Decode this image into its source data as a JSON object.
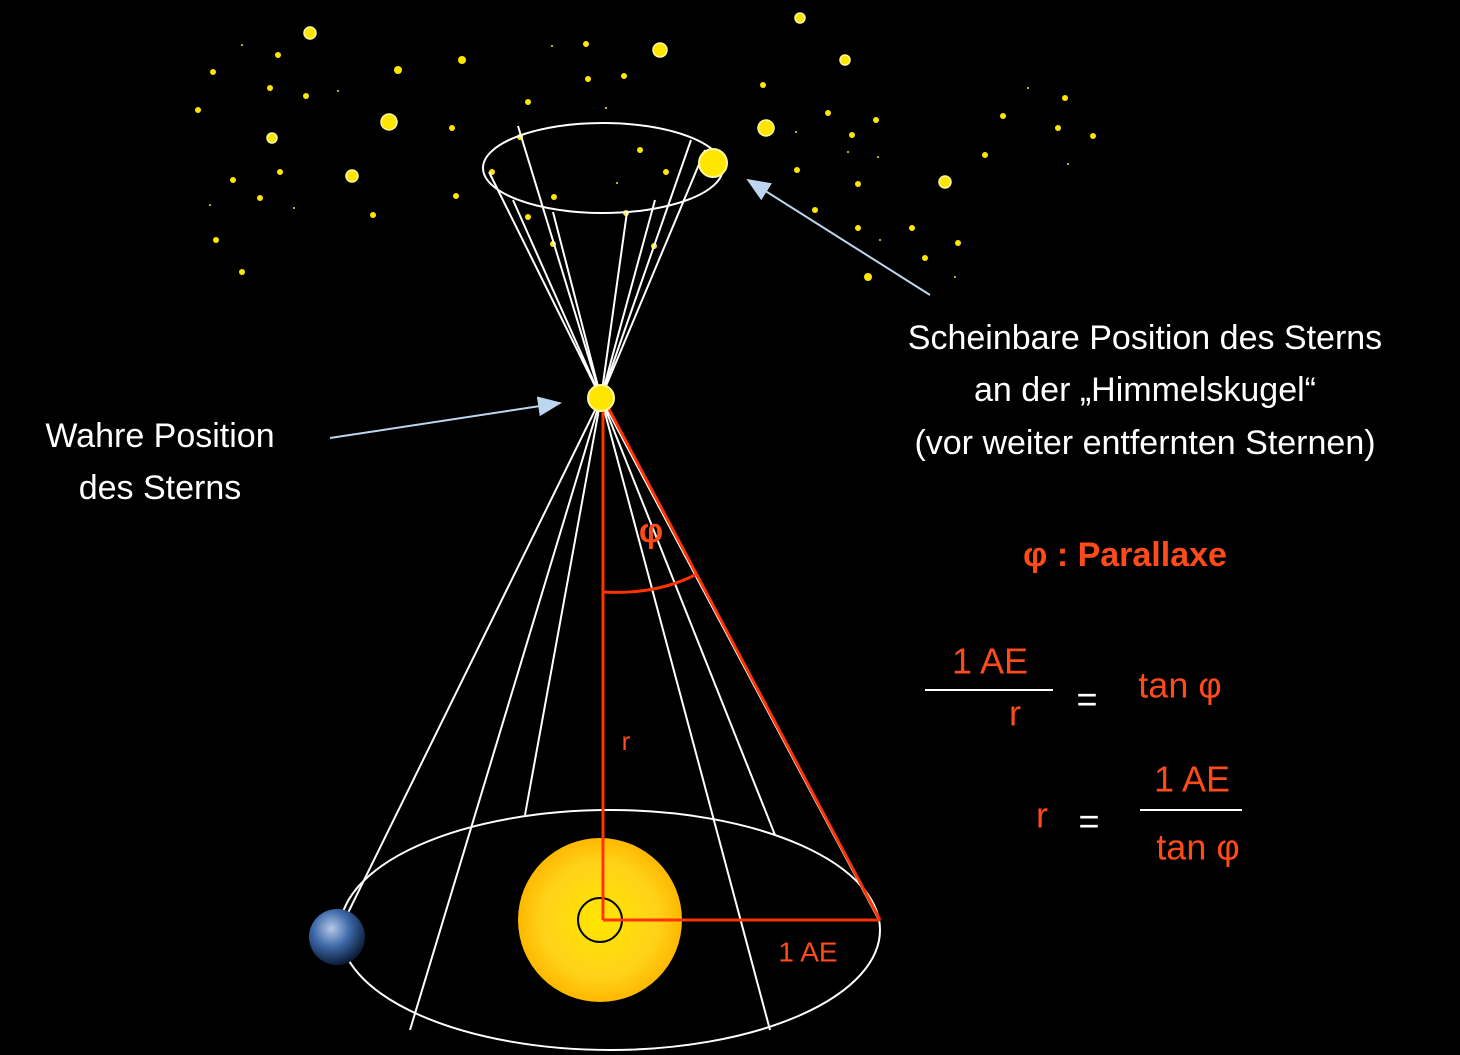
{
  "labels": {
    "apparent_position": [
      "Scheinbare Position des Sterns",
      "an der „Himmelskugel“",
      "(vor weiter entfernten Sternen)"
    ],
    "true_position": [
      "Wahre Position",
      "des Sterns"
    ],
    "parallax_legend": "φ : Parallaxe",
    "angle": "φ",
    "distance": "r",
    "baseline": "1 AE"
  },
  "formulas": [
    {
      "numerator": "1 AE",
      "denominator": "r",
      "equals": "=",
      "right": "tan φ"
    },
    {
      "left": "r",
      "equals": "=",
      "numerator": "1 AE",
      "denominator": "tan φ"
    }
  ]
}
